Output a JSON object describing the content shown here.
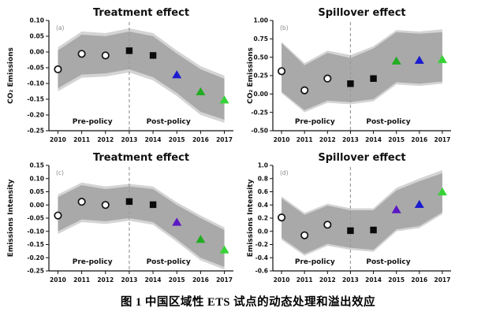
{
  "figure": {
    "caption": "图 1  中国区域性 ETS 试点的动态处理和溢出效应"
  },
  "colors": {
    "black": "#0a0a0a",
    "axis": "#111111",
    "blue": "#1b1bd0",
    "purple": "#5a17c4",
    "green": "#23ab23",
    "bright_green": "#36d336",
    "band_inner": "#a9a9a9",
    "band_outer": "#d4d4d4",
    "policy_line": "#9b9b9b",
    "panel_letter": "#8a8a8a",
    "circle_fill": "#ffffff"
  },
  "chart_data": [
    {
      "id": "a",
      "type": "scatter",
      "title": "Treatment effect",
      "panel_label": "(a)",
      "ylabel": "CO₂ Emissions",
      "xlabel": "",
      "x": [
        2010,
        2011,
        2012,
        2013,
        2014,
        2015,
        2016,
        2017
      ],
      "ylim": [
        -0.25,
        0.1
      ],
      "ytick_values": [
        0.1,
        0.05,
        0.0,
        -0.05,
        -0.1,
        -0.15,
        -0.2,
        -0.25
      ],
      "ytick_labels": [
        "0.10",
        "0.05",
        "0.00",
        "-0.05",
        "-0.10",
        "-0.15",
        "-0.20",
        "-0.25"
      ],
      "points": [
        {
          "x": 2010,
          "y": -0.055,
          "marker": "circle-open",
          "color": "black"
        },
        {
          "x": 2011,
          "y": -0.006,
          "marker": "circle-open",
          "color": "black"
        },
        {
          "x": 2012,
          "y": -0.011,
          "marker": "circle-open",
          "color": "black"
        },
        {
          "x": 2013,
          "y": 0.004,
          "marker": "square",
          "color": "black"
        },
        {
          "x": 2014,
          "y": -0.011,
          "marker": "square",
          "color": "black"
        },
        {
          "x": 2015,
          "y": -0.072,
          "marker": "triangle",
          "color": "blue"
        },
        {
          "x": 2016,
          "y": -0.126,
          "marker": "triangle",
          "color": "green"
        },
        {
          "x": 2017,
          "y": -0.152,
          "marker": "triangle",
          "color": "bright_green"
        }
      ],
      "band_inner": {
        "top": [
          0.005,
          0.055,
          0.05,
          0.065,
          0.05,
          -0.005,
          -0.055,
          -0.085
        ],
        "bottom": [
          -0.115,
          -0.072,
          -0.068,
          -0.055,
          -0.08,
          -0.13,
          -0.19,
          -0.215
        ]
      },
      "band_outer": {
        "top": [
          0.015,
          0.065,
          0.06,
          0.075,
          0.06,
          0.005,
          -0.045,
          -0.075
        ],
        "bottom": [
          -0.125,
          -0.082,
          -0.078,
          -0.065,
          -0.09,
          -0.14,
          -0.2,
          -0.225
        ]
      },
      "policy_line_x": 2013,
      "pre_label": "Pre-policy",
      "post_label": "Post-policy"
    },
    {
      "id": "b",
      "type": "scatter",
      "title": "Spillover effect",
      "panel_label": "(b)",
      "ylabel": "CO₂ Emissions",
      "xlabel": "",
      "x": [
        2010,
        2011,
        2012,
        2013,
        2014,
        2015,
        2016,
        2017
      ],
      "ylim": [
        -0.5,
        1.0
      ],
      "ytick_values": [
        1.0,
        0.75,
        0.5,
        0.25,
        0.0,
        -0.25,
        -0.5
      ],
      "ytick_labels": [
        "1.00",
        "0.75",
        "0.50",
        "0.25",
        "0.00",
        "-0.25",
        "-0.50"
      ],
      "points": [
        {
          "x": 2010,
          "y": 0.31,
          "marker": "circle-open",
          "color": "black"
        },
        {
          "x": 2011,
          "y": 0.05,
          "marker": "circle-open",
          "color": "black"
        },
        {
          "x": 2012,
          "y": 0.21,
          "marker": "circle-open",
          "color": "black"
        },
        {
          "x": 2013,
          "y": 0.14,
          "marker": "square",
          "color": "black"
        },
        {
          "x": 2014,
          "y": 0.21,
          "marker": "square",
          "color": "black"
        },
        {
          "x": 2015,
          "y": 0.45,
          "marker": "triangle",
          "color": "green"
        },
        {
          "x": 2016,
          "y": 0.46,
          "marker": "triangle",
          "color": "blue"
        },
        {
          "x": 2017,
          "y": 0.47,
          "marker": "triangle",
          "color": "bright_green"
        }
      ],
      "band_inner": {
        "top": [
          0.69,
          0.39,
          0.56,
          0.49,
          0.62,
          0.84,
          0.82,
          0.84
        ],
        "bottom": [
          0.03,
          -0.22,
          -0.09,
          -0.11,
          -0.07,
          0.16,
          0.14,
          0.17
        ]
      },
      "band_outer": {
        "top": [
          0.71,
          0.42,
          0.59,
          0.53,
          0.65,
          0.87,
          0.85,
          0.88
        ],
        "bottom": [
          0.01,
          -0.25,
          -0.12,
          -0.14,
          -0.1,
          0.13,
          0.11,
          0.14
        ]
      },
      "policy_line_x": 2013,
      "pre_label": "Pre-policy",
      "post_label": "Post-policy"
    },
    {
      "id": "c",
      "type": "scatter",
      "title": "Treatment effect",
      "panel_label": "(c)",
      "ylabel": "Emissions Intensity",
      "xlabel": "",
      "x": [
        2010,
        2011,
        2012,
        2013,
        2014,
        2015,
        2016,
        2017
      ],
      "ylim": [
        -0.25,
        0.15
      ],
      "ytick_values": [
        0.15,
        0.1,
        0.05,
        0.0,
        -0.05,
        -0.1,
        -0.15,
        -0.2,
        -0.25
      ],
      "ytick_labels": [
        "0.15",
        "0.10",
        "0.05",
        "0.00",
        "-0.05",
        "-0.10",
        "-0.15",
        "-0.20",
        "-0.25"
      ],
      "points": [
        {
          "x": 2010,
          "y": -0.04,
          "marker": "circle-open",
          "color": "black"
        },
        {
          "x": 2011,
          "y": 0.012,
          "marker": "circle-open",
          "color": "black"
        },
        {
          "x": 2012,
          "y": 0.0,
          "marker": "circle-open",
          "color": "black"
        },
        {
          "x": 2013,
          "y": 0.013,
          "marker": "square",
          "color": "black"
        },
        {
          "x": 2014,
          "y": 0.001,
          "marker": "square",
          "color": "black"
        },
        {
          "x": 2015,
          "y": -0.065,
          "marker": "triangle",
          "color": "purple"
        },
        {
          "x": 2016,
          "y": -0.13,
          "marker": "triangle",
          "color": "green"
        },
        {
          "x": 2017,
          "y": -0.17,
          "marker": "triangle",
          "color": "bright_green"
        }
      ],
      "band_inner": {
        "top": [
          0.03,
          0.075,
          0.06,
          0.07,
          0.06,
          0.0,
          -0.05,
          -0.095
        ],
        "bottom": [
          -0.1,
          -0.055,
          -0.062,
          -0.05,
          -0.065,
          -0.13,
          -0.2,
          -0.235
        ]
      },
      "band_outer": {
        "top": [
          0.04,
          0.085,
          0.07,
          0.08,
          0.07,
          0.01,
          -0.04,
          -0.085
        ],
        "bottom": [
          -0.11,
          -0.065,
          -0.072,
          -0.06,
          -0.075,
          -0.14,
          -0.21,
          -0.245
        ]
      },
      "policy_line_x": 2013,
      "pre_label": "Pre-policy",
      "post_label": "Post-policy"
    },
    {
      "id": "d",
      "type": "scatter",
      "title": "Spillover effect",
      "panel_label": "(d)",
      "ylabel": "Emissions Intensity",
      "xlabel": "",
      "x": [
        2010,
        2011,
        2012,
        2013,
        2014,
        2015,
        2016,
        2017
      ],
      "ylim": [
        -0.6,
        1.0
      ],
      "ytick_values": [
        1.0,
        0.8,
        0.6,
        0.4,
        0.2,
        0.0,
        -0.2,
        -0.4,
        -0.6
      ],
      "ytick_labels": [
        "1.0",
        "0.8",
        "0.6",
        "0.4",
        "0.2",
        "0.0",
        "-0.2",
        "-0.4",
        "-0.6"
      ],
      "points": [
        {
          "x": 2010,
          "y": 0.21,
          "marker": "circle-open",
          "color": "black"
        },
        {
          "x": 2011,
          "y": -0.06,
          "marker": "circle-open",
          "color": "black"
        },
        {
          "x": 2012,
          "y": 0.1,
          "marker": "circle-open",
          "color": "black"
        },
        {
          "x": 2013,
          "y": 0.01,
          "marker": "square",
          "color": "black"
        },
        {
          "x": 2014,
          "y": 0.02,
          "marker": "square",
          "color": "black"
        },
        {
          "x": 2015,
          "y": 0.33,
          "marker": "triangle",
          "color": "purple"
        },
        {
          "x": 2016,
          "y": 0.41,
          "marker": "triangle",
          "color": "blue"
        },
        {
          "x": 2017,
          "y": 0.6,
          "marker": "triangle",
          "color": "bright_green"
        }
      ],
      "band_inner": {
        "top": [
          0.5,
          0.25,
          0.39,
          0.32,
          0.32,
          0.62,
          0.76,
          0.88
        ],
        "bottom": [
          -0.1,
          -0.34,
          -0.19,
          -0.25,
          -0.28,
          0.03,
          0.08,
          0.29
        ]
      },
      "band_outer": {
        "top": [
          0.53,
          0.28,
          0.42,
          0.35,
          0.35,
          0.66,
          0.8,
          0.93
        ],
        "bottom": [
          -0.13,
          -0.37,
          -0.22,
          -0.28,
          -0.31,
          0.0,
          0.05,
          0.26
        ]
      },
      "policy_line_x": 2013,
      "pre_label": "Pre-policy",
      "post_label": "Post-policy"
    }
  ]
}
